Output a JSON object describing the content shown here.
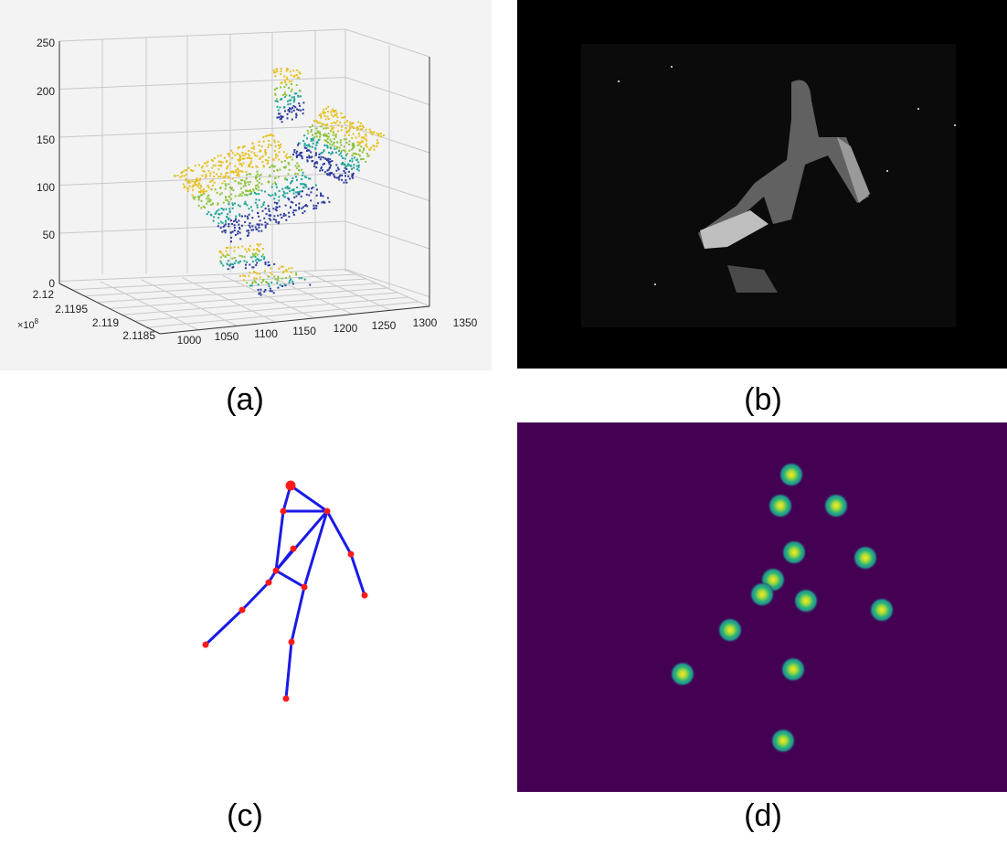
{
  "panels": {
    "a": {
      "caption": "(a)",
      "z_ticks": [
        "0",
        "50",
        "100",
        "150",
        "200",
        "250"
      ],
      "x_ticks": [
        "1000",
        "1050",
        "1100",
        "1150",
        "1200",
        "1250",
        "1300",
        "1350"
      ],
      "y_ticks": [
        "2.12",
        "2.1195",
        "2.119",
        "2.1185"
      ],
      "y_multiplier": "×10",
      "y_multiplier_exp": "8"
    },
    "b": {
      "caption": "(b)"
    },
    "c": {
      "caption": "(c)",
      "bone_color": "#1a1ae6",
      "joint_color": "#ff1a1a"
    },
    "d": {
      "caption": "(d)",
      "background": "#440154",
      "peak_color": "#fde725"
    }
  }
}
